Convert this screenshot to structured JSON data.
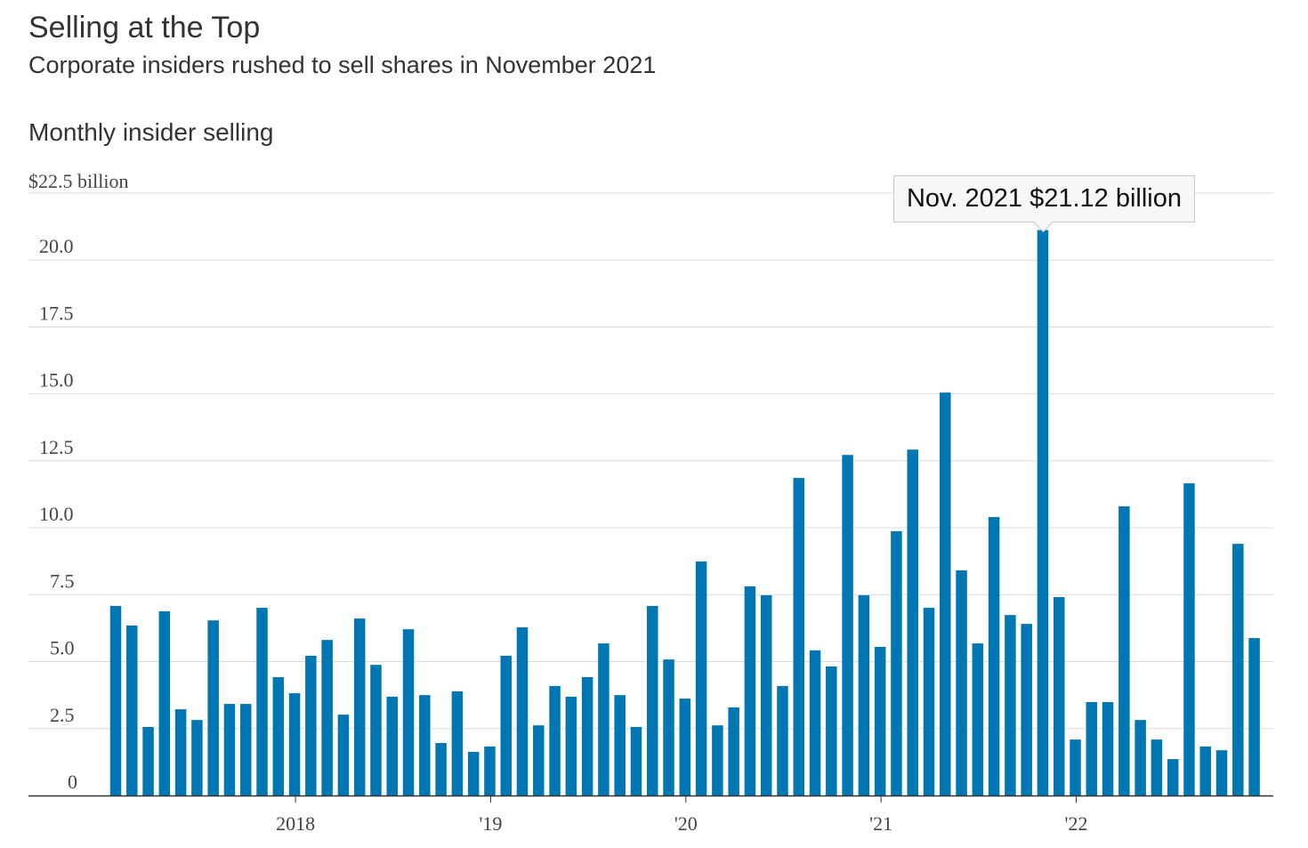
{
  "chart_data": {
    "type": "bar",
    "title": "Selling at the Top",
    "subtitle": "Corporate insiders rushed to sell shares in November 2021",
    "ylabel": "Monthly insider selling",
    "unit_label": "$22.5 billion",
    "ylim": [
      0,
      22.5
    ],
    "y_ticks": [
      "0",
      "2.5",
      "5.0",
      "7.5",
      "10.0",
      "12.5",
      "15.0",
      "17.5",
      "20.0"
    ],
    "x_ticks": [
      {
        "label": "2018",
        "index": 11
      },
      {
        "label": "'19",
        "index": 23
      },
      {
        "label": "'20",
        "index": 35
      },
      {
        "label": "'21",
        "index": 47
      },
      {
        "label": "'22",
        "index": 59
      }
    ],
    "start_month": "Feb 2017",
    "end_month": "Dec 2022",
    "color": "#0077b3",
    "values": [
      7.08,
      6.35,
      2.56,
      6.88,
      3.22,
      2.82,
      6.54,
      3.42,
      3.42,
      7.01,
      4.42,
      3.82,
      5.22,
      5.81,
      3.02,
      6.61,
      4.88,
      3.69,
      6.21,
      3.75,
      1.96,
      3.89,
      1.63,
      1.83,
      5.22,
      6.28,
      2.62,
      4.09,
      3.69,
      4.42,
      5.68,
      3.75,
      2.56,
      7.08,
      5.08,
      3.62,
      8.74,
      2.62,
      3.29,
      7.81,
      7.48,
      4.09,
      11.86,
      5.42,
      4.82,
      12.72,
      7.48,
      5.55,
      9.87,
      12.92,
      7.01,
      15.05,
      8.41,
      5.68,
      10.4,
      6.74,
      6.41,
      21.12,
      7.41,
      2.09,
      3.49,
      3.49,
      10.8,
      2.82,
      2.09,
      1.36,
      11.66,
      1.83,
      1.69,
      9.4,
      5.88
    ],
    "annotation": {
      "text": "Nov. 2021 $21.12 billion",
      "index": 57
    }
  }
}
